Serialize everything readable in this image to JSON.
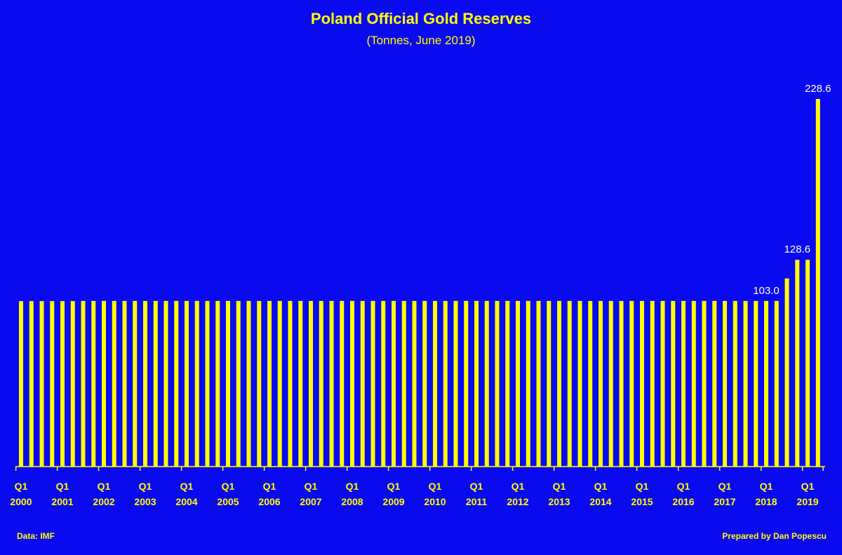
{
  "chart_data": {
    "type": "bar",
    "title": "Poland Official Gold Reserves",
    "subtitle": "(Tonnes, June 2019)",
    "source": "Data: IMF",
    "credit": "Prepared by Dan Popescu",
    "color": "#ffff00",
    "categories": [
      "Q1\n2000",
      null,
      null,
      null,
      "Q1\n2001",
      null,
      null,
      null,
      "Q1\n2002",
      null,
      null,
      null,
      "Q1\n2003",
      null,
      null,
      null,
      "Q1\n2004",
      null,
      null,
      null,
      "Q1\n2005",
      null,
      null,
      null,
      "Q1\n2006",
      null,
      null,
      null,
      "Q1\n2007",
      null,
      null,
      null,
      "Q1\n2008",
      null,
      null,
      null,
      "Q1\n2009",
      null,
      null,
      null,
      "Q1\n2010",
      null,
      null,
      null,
      "Q1\n2011",
      null,
      null,
      null,
      "Q1\n2012",
      null,
      null,
      null,
      "Q1\n2013",
      null,
      null,
      null,
      "Q1\n2014",
      null,
      null,
      null,
      "Q1\n2015",
      null,
      null,
      null,
      "Q1\n2016",
      null,
      null,
      null,
      "Q1\n2017",
      null,
      null,
      null,
      "Q1\n2018",
      null,
      null,
      null,
      "Q1\n2019",
      null
    ],
    "values": [
      102.9,
      102.9,
      102.9,
      102.9,
      102.9,
      102.9,
      103.0,
      103.0,
      103.0,
      103.0,
      103.0,
      103.0,
      103.0,
      103.0,
      103.0,
      103.0,
      103.0,
      103.0,
      103.0,
      103.0,
      103.0,
      103.0,
      103.0,
      103.0,
      103.0,
      103.0,
      103.0,
      103.0,
      103.0,
      103.0,
      103.0,
      103.0,
      103.0,
      103.0,
      103.0,
      103.0,
      103.0,
      103.0,
      103.0,
      103.0,
      103.0,
      103.0,
      103.0,
      103.0,
      103.0,
      103.0,
      103.0,
      103.0,
      103.0,
      103.0,
      103.0,
      103.0,
      103.0,
      103.0,
      103.0,
      103.0,
      103.0,
      103.0,
      103.0,
      103.0,
      103.0,
      103.0,
      103.0,
      103.0,
      103.0,
      103.0,
      103.0,
      103.0,
      103.0,
      103.0,
      103.0,
      103.0,
      103.0,
      103.0,
      117.0,
      128.6,
      128.6,
      228.6
    ],
    "value_labels": [
      null,
      null,
      null,
      null,
      null,
      null,
      null,
      null,
      null,
      null,
      null,
      null,
      null,
      null,
      null,
      null,
      null,
      null,
      null,
      null,
      null,
      null,
      null,
      null,
      null,
      null,
      null,
      null,
      null,
      null,
      null,
      null,
      null,
      null,
      null,
      null,
      null,
      null,
      null,
      null,
      null,
      null,
      null,
      null,
      null,
      null,
      null,
      null,
      null,
      null,
      null,
      null,
      null,
      null,
      null,
      null,
      null,
      null,
      null,
      null,
      null,
      null,
      null,
      null,
      null,
      null,
      null,
      null,
      null,
      null,
      null,
      null,
      "103.0",
      null,
      null,
      "128.6",
      null,
      "228.6"
    ]
  }
}
